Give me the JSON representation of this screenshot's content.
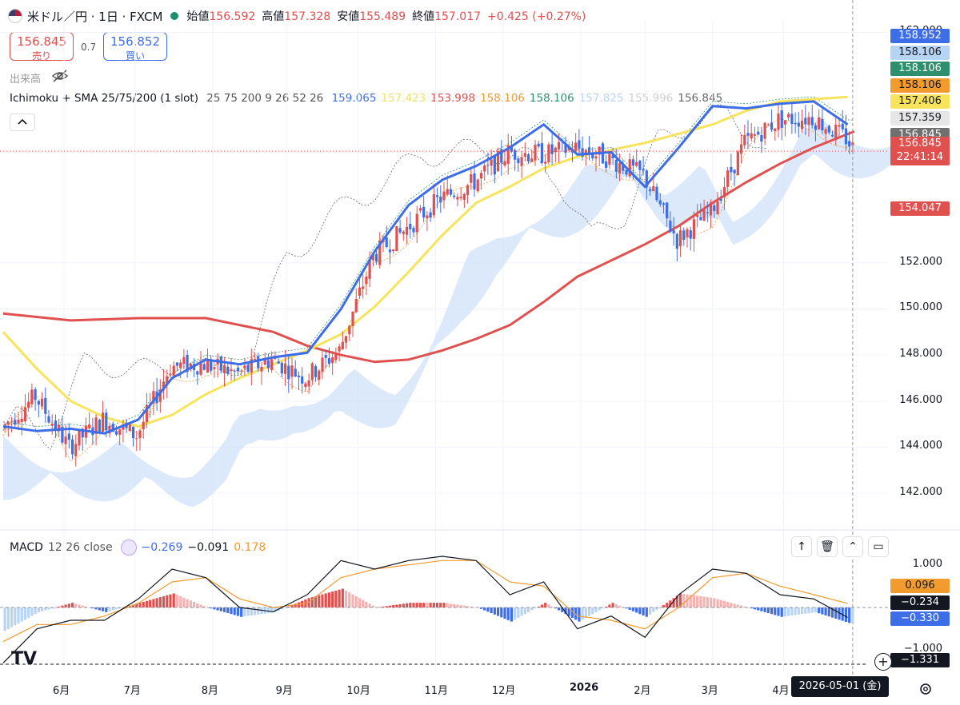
{
  "header": {
    "title": "米ドル／円 · 1日 · FXCM",
    "ohlc": [
      {
        "k": "始値",
        "v": "156.592"
      },
      {
        "k": "高値",
        "v": "157.328"
      },
      {
        "k": "安値",
        "v": "155.489"
      },
      {
        "k": "終値",
        "v": "157.017"
      }
    ],
    "change": "+0.425 (+0.27%)"
  },
  "trade": {
    "sell_price": "156.845",
    "sell_label": "売り",
    "spread": "0.7",
    "buy_price": "156.852",
    "buy_label": "買い"
  },
  "volume_label": "出来高",
  "indicator": {
    "name": "Ichimoku + SMA 25/75/200 (1 slot)",
    "params": "25 75 200 9 26 52 26",
    "values": [
      {
        "v": "159.065",
        "color": "#3d6ee8"
      },
      {
        "v": "157.423",
        "color": "#f3e06a"
      },
      {
        "v": "153.998",
        "color": "#e0504f"
      },
      {
        "v": "158.106",
        "color": "#f29b2e"
      },
      {
        "v": "158.106",
        "color": "#2e8f6f"
      },
      {
        "v": "157.825",
        "color": "#b8d4f5"
      },
      {
        "v": "155.996",
        "color": "#cfcfcf"
      },
      {
        "v": "156.845",
        "color": "#666666"
      }
    ]
  },
  "macd": {
    "name": "MACD",
    "params": "12 26 close",
    "values": [
      {
        "v": "−0.269",
        "color": "#3d6ee8"
      },
      {
        "v": "−0.091",
        "color": "#131722"
      },
      {
        "v": "0.178",
        "color": "#f29b2e"
      }
    ]
  },
  "price_axis": {
    "ticks": [
      "162.000",
      "152.000",
      "150.000",
      "148.000",
      "146.000",
      "144.000",
      "142.000"
    ],
    "badges": [
      {
        "v": "158.952",
        "bg": "#3d6ee8",
        "fg": "#ffffff"
      },
      {
        "v": "158.106",
        "bg": "#b8d4f5",
        "fg": "#131722"
      },
      {
        "v": "158.106",
        "bg": "#2e8f6f",
        "fg": "#ffffff"
      },
      {
        "v": "158.106",
        "bg": "#f29b2e",
        "fg": "#131722"
      },
      {
        "v": "157.406",
        "bg": "#f7e45c",
        "fg": "#131722"
      },
      {
        "v": "157.359",
        "bg": "#e6e6e6",
        "fg": "#131722"
      },
      {
        "v": "156.845",
        "bg": "#707070",
        "fg": "#ffffff"
      }
    ],
    "current_price": "156.845",
    "countdown": "22:41:14",
    "sma200_badge": "154.047"
  },
  "macd_axis": {
    "ticks": [
      "1.000",
      "−1.000"
    ],
    "badges": [
      {
        "v": "0.096",
        "bg": "#f29b2e",
        "fg": "#131722"
      },
      {
        "v": "−0.234",
        "bg": "#131722",
        "fg": "#ffffff"
      },
      {
        "v": "−0.330",
        "bg": "#3d6ee8",
        "fg": "#ffffff"
      },
      {
        "v": "−1.331",
        "bg": "#131722",
        "fg": "#ffffff"
      }
    ]
  },
  "time_axis": {
    "ticks": [
      "6月",
      "7月",
      "8月",
      "9月",
      "10月",
      "11月",
      "12月",
      "2026",
      "2月",
      "3月",
      "4月"
    ],
    "crosshair_date": "2026-05-01 (金)"
  },
  "colors": {
    "up": "#e0504f",
    "down": "#3d6ee8",
    "sma25": "#3d6ee8",
    "sma75": "#f7e45c",
    "sma200": "#e0504f"
  },
  "chart_data": {
    "type": "candlestick",
    "title": "米ドル／円 · 1日 · FXCM",
    "ylim": [
      141,
      162.5
    ],
    "months": [
      "6月",
      "7月",
      "8月",
      "9月",
      "10月",
      "11月",
      "12月",
      "2026",
      "2月",
      "3月",
      "4月"
    ],
    "close_path": [
      [
        0,
        144.8
      ],
      [
        10,
        146.2
      ],
      [
        20,
        144.0
      ],
      [
        30,
        145.2
      ],
      [
        40,
        144.5
      ],
      [
        50,
        147.5
      ],
      [
        60,
        147.6
      ],
      [
        70,
        147.2
      ],
      [
        80,
        147.8
      ],
      [
        90,
        147.0
      ],
      [
        100,
        148.2
      ],
      [
        110,
        152.3
      ],
      [
        120,
        153.5
      ],
      [
        130,
        154.8
      ],
      [
        140,
        155.5
      ],
      [
        150,
        156.8
      ],
      [
        160,
        156.7
      ],
      [
        170,
        157.0
      ],
      [
        180,
        156.5
      ],
      [
        190,
        155.8
      ],
      [
        200,
        153.0
      ],
      [
        210,
        154.2
      ],
      [
        220,
        157.2
      ],
      [
        230,
        158.2
      ],
      [
        240,
        158.3
      ],
      [
        250,
        157.4
      ],
      [
        252,
        157.0
      ]
    ],
    "sma25": [
      [
        0,
        144.9
      ],
      [
        10,
        144.7
      ],
      [
        20,
        144.8
      ],
      [
        30,
        144.6
      ],
      [
        40,
        145.2
      ],
      [
        50,
        147.0
      ],
      [
        60,
        147.8
      ],
      [
        70,
        147.6
      ],
      [
        80,
        147.9
      ],
      [
        90,
        148.1
      ],
      [
        100,
        150.0
      ],
      [
        110,
        152.5
      ],
      [
        120,
        154.5
      ],
      [
        130,
        155.6
      ],
      [
        140,
        156.2
      ],
      [
        150,
        157.0
      ],
      [
        160,
        158.0
      ],
      [
        170,
        156.7
      ],
      [
        180,
        156.8
      ],
      [
        190,
        155.3
      ],
      [
        200,
        157.0
      ],
      [
        210,
        158.8
      ],
      [
        220,
        158.7
      ],
      [
        230,
        158.9
      ],
      [
        240,
        159.0
      ],
      [
        250,
        158.0
      ]
    ],
    "sma75": [
      [
        0,
        149.0
      ],
      [
        10,
        147.4
      ],
      [
        20,
        146.0
      ],
      [
        30,
        145.3
      ],
      [
        40,
        144.9
      ],
      [
        50,
        145.4
      ],
      [
        60,
        146.3
      ],
      [
        70,
        147.0
      ],
      [
        80,
        147.6
      ],
      [
        90,
        148.2
      ],
      [
        100,
        148.9
      ],
      [
        110,
        150.1
      ],
      [
        120,
        151.6
      ],
      [
        130,
        153.2
      ],
      [
        140,
        154.6
      ],
      [
        150,
        155.3
      ],
      [
        160,
        156.1
      ],
      [
        170,
        156.6
      ],
      [
        180,
        156.9
      ],
      [
        190,
        157.2
      ],
      [
        200,
        157.6
      ],
      [
        210,
        158.0
      ],
      [
        220,
        158.6
      ],
      [
        230,
        159.0
      ],
      [
        250,
        159.2
      ]
    ],
    "sma200": [
      [
        0,
        149.8
      ],
      [
        20,
        149.5
      ],
      [
        40,
        149.6
      ],
      [
        60,
        149.6
      ],
      [
        80,
        149.0
      ],
      [
        90,
        148.4
      ],
      [
        100,
        148.0
      ],
      [
        110,
        147.7
      ],
      [
        120,
        147.8
      ],
      [
        130,
        148.2
      ],
      [
        140,
        148.7
      ],
      [
        150,
        149.3
      ],
      [
        160,
        150.3
      ],
      [
        170,
        151.4
      ],
      [
        180,
        152.1
      ],
      [
        190,
        152.8
      ],
      [
        200,
        153.6
      ],
      [
        210,
        154.6
      ],
      [
        220,
        155.5
      ],
      [
        230,
        156.3
      ],
      [
        240,
        157.0
      ],
      [
        252,
        157.7
      ]
    ],
    "macd_line": [
      [
        0,
        -1.3
      ],
      [
        10,
        -0.5
      ],
      [
        20,
        -0.3
      ],
      [
        30,
        -0.3
      ],
      [
        40,
        0.2
      ],
      [
        50,
        0.9
      ],
      [
        60,
        0.7
      ],
      [
        70,
        0.0
      ],
      [
        80,
        -0.1
      ],
      [
        90,
        0.3
      ],
      [
        100,
        1.1
      ],
      [
        110,
        0.9
      ],
      [
        120,
        1.1
      ],
      [
        130,
        1.2
      ],
      [
        140,
        1.1
      ],
      [
        150,
        0.3
      ],
      [
        160,
        0.6
      ],
      [
        170,
        -0.5
      ],
      [
        180,
        -0.2
      ],
      [
        190,
        -0.7
      ],
      [
        200,
        0.3
      ],
      [
        210,
        0.9
      ],
      [
        220,
        0.8
      ],
      [
        230,
        0.3
      ],
      [
        240,
        0.2
      ],
      [
        250,
        -0.234
      ]
    ],
    "signal_line": [
      [
        0,
        -0.8
      ],
      [
        10,
        -0.4
      ],
      [
        20,
        -0.4
      ],
      [
        30,
        -0.2
      ],
      [
        40,
        0.1
      ],
      [
        50,
        0.6
      ],
      [
        60,
        0.7
      ],
      [
        70,
        0.2
      ],
      [
        80,
        0.0
      ],
      [
        90,
        0.1
      ],
      [
        100,
        0.7
      ],
      [
        110,
        0.9
      ],
      [
        120,
        1.0
      ],
      [
        130,
        1.1
      ],
      [
        140,
        1.1
      ],
      [
        150,
        0.6
      ],
      [
        160,
        0.5
      ],
      [
        170,
        -0.2
      ],
      [
        180,
        -0.3
      ],
      [
        190,
        -0.5
      ],
      [
        200,
        0.0
      ],
      [
        210,
        0.7
      ],
      [
        220,
        0.8
      ],
      [
        230,
        0.5
      ],
      [
        240,
        0.3
      ],
      [
        250,
        0.096
      ]
    ],
    "macd_ylim": [
      -1.5,
      1.5
    ]
  }
}
